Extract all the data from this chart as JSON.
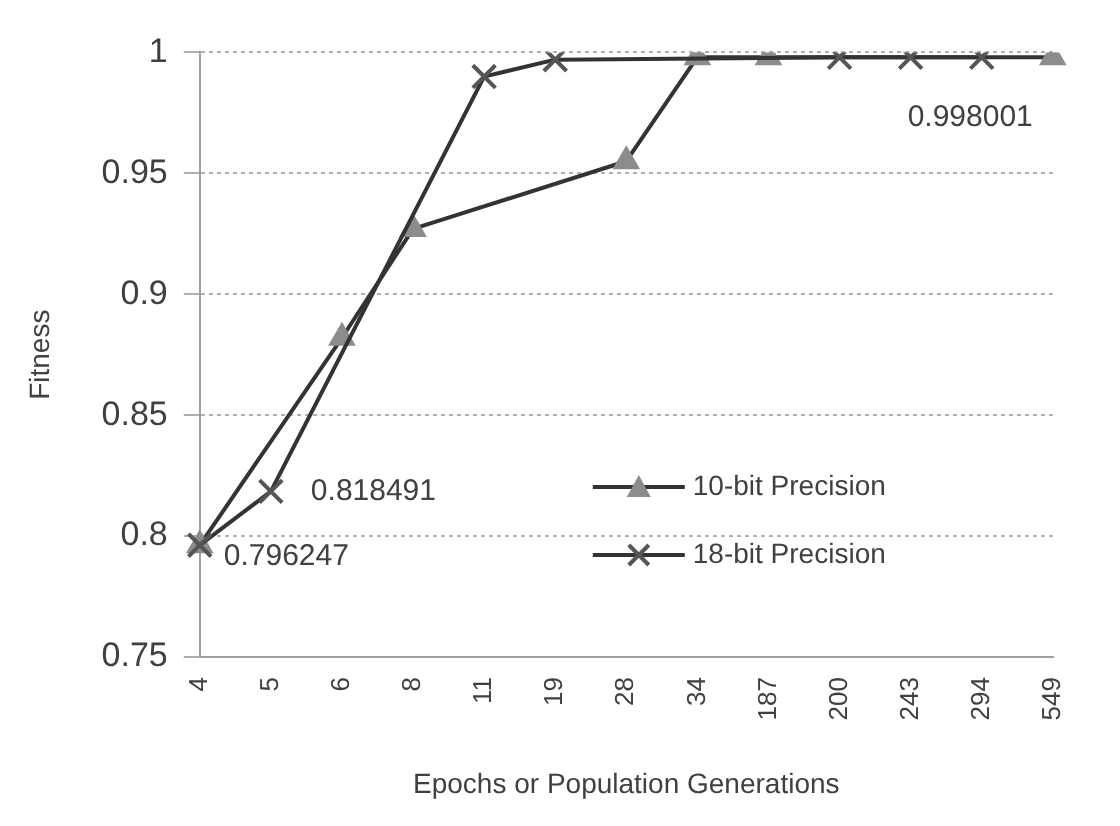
{
  "chart_data": {
    "type": "line",
    "xlabel": "Epochs or Population Generations",
    "ylabel": "Fitness",
    "categories": [
      "4",
      "5",
      "6",
      "8",
      "11",
      "19",
      "28",
      "34",
      "187",
      "200",
      "243",
      "294",
      "549"
    ],
    "ylim": [
      0.75,
      1.0
    ],
    "yticks": [
      0.75,
      0.8,
      0.85,
      0.9,
      0.95,
      1
    ],
    "grid": "y",
    "legend": "bottom right",
    "series": [
      {
        "name": "10-bit Precision",
        "color": "#333333",
        "marker": "triangle",
        "values": [
          0.796247,
          null,
          0.882,
          0.927,
          null,
          null,
          0.955,
          0.998,
          0.998,
          null,
          null,
          null,
          0.998001
        ],
        "value_labels": [
          "0.796247",
          null,
          null,
          null,
          null,
          null,
          null,
          null,
          null,
          null,
          null,
          null,
          "0.998001"
        ]
      },
      {
        "name": "18-bit Precision",
        "color": "#333333",
        "marker": "cross",
        "values": [
          0.796247,
          0.818491,
          null,
          null,
          0.99,
          0.997,
          null,
          null,
          null,
          0.998,
          0.998,
          0.998,
          null
        ],
        "value_labels": [
          null,
          "0.818491",
          null,
          null,
          null,
          null,
          null,
          null,
          null,
          null,
          null,
          null,
          null
        ]
      }
    ]
  }
}
